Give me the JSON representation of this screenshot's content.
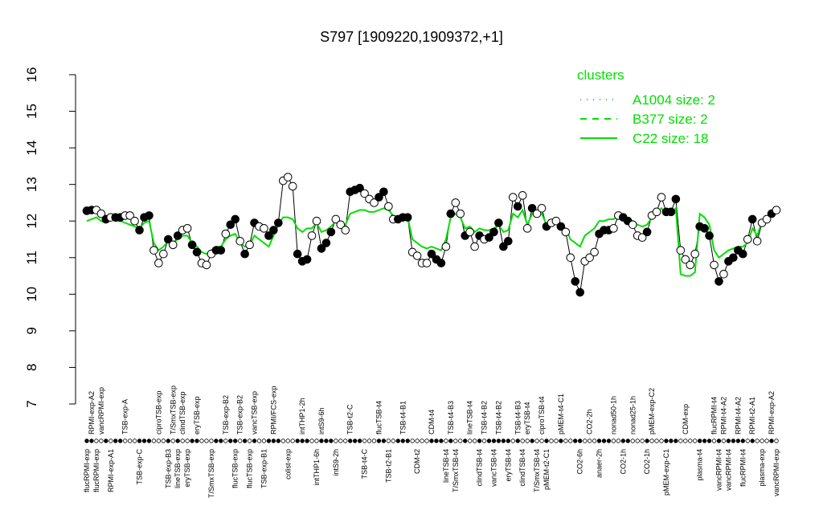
{
  "chart_data": {
    "type": "line",
    "title": "S797 [1909220,1909372,+1]",
    "ylim": [
      7,
      16
    ],
    "yticks": [
      7,
      8,
      9,
      10,
      11,
      12,
      13,
      14,
      15,
      16
    ],
    "categories": [
      "flucRPMI-exp",
      "RPMI-exp-A2",
      "flucRPMI-exp",
      "vancRPMI-exp",
      null,
      "RPMI-exp-A1",
      null,
      null,
      "TSB-exp-A",
      null,
      null,
      "TSB-exp-C",
      null,
      null,
      null,
      "ciproTSB-exp",
      null,
      "TSB-exp-B3",
      "T/SmxTSB-exp",
      "lineTSB-exp",
      "clindTSB-exp",
      "eryTSB-exp",
      null,
      "eryTSB-exp",
      null,
      null,
      "T/SmxTSB-exp",
      null,
      null,
      "TSB-exp-B2",
      null,
      "flucTSB-exp",
      "TSB-exp-B2",
      null,
      "flucTSB-exp",
      "vancTSB-exp",
      null,
      "TSB-exp-B1",
      null,
      "RPMI/FCS-exp",
      null,
      null,
      "colist-exp",
      null,
      null,
      "intTHP1-2h",
      null,
      null,
      "intTHP1-6h",
      "intS9-6h",
      null,
      null,
      "intS9-2h",
      null,
      null,
      "TSB-t2-C",
      null,
      null,
      "TSB-t4-C",
      null,
      null,
      "flucTSB-t4",
      null,
      "TSB-t2-B1",
      null,
      null,
      "TSB-t4-B1",
      null,
      null,
      "CDM-t2",
      null,
      null,
      "CDM-t4",
      null,
      null,
      "lineTSB-t4",
      "TSB-t4-B3",
      "T/SmxTSB-t4",
      null,
      null,
      "lineTSB-t4",
      null,
      "clindTSB-t4",
      "TSB-t4-B2",
      null,
      "vancTSB-t4",
      "TSB-t4-B2",
      null,
      "eryTSB-t4",
      null,
      "TSB-t4-B3",
      "clindTSB-t4",
      "eryTSB-t4",
      null,
      "T/SmxTSB-t4",
      "ciproTSB-t4",
      "pMEM-t2-C1",
      null,
      null,
      "pMEM-t4-C1",
      null,
      null,
      null,
      "CO2-6h",
      null,
      "CO2-2h",
      null,
      "anaer-2h",
      null,
      null,
      "nonad50-1h",
      null,
      "CO2-1h",
      null,
      "nonad25-1h",
      null,
      null,
      "CO2-1h",
      "pMEM-exp-C2",
      null,
      null,
      "pMEM-exp-C1",
      null,
      null,
      null,
      "CDM-exp",
      null,
      null,
      "plasma-t4",
      null,
      null,
      "flucRPMI-t4",
      "vancRPMI-t4",
      "RPMI-t4-A2",
      "vancRPMI-t4",
      null,
      "RPMI-t4-A2",
      "flucRPMI-t4",
      null,
      "RPMI-t2-A1",
      null,
      "plasma-exp",
      null,
      "RPMI-exp-A2",
      "vancRPMI-exp"
    ],
    "series": [
      {
        "color": "#000000",
        "values": [
          12.28,
          12.3,
          12.3,
          12.2,
          12.05,
          12.1,
          12.1,
          12.1,
          12.15,
          12.15,
          12.0,
          11.75,
          12.1,
          12.15,
          11.2,
          10.85,
          11.1,
          11.5,
          11.35,
          11.6,
          11.75,
          11.8,
          11.35,
          11.15,
          10.85,
          10.8,
          11.1,
          11.2,
          11.2,
          11.65,
          11.9,
          12.05,
          11.45,
          11.1,
          11.35,
          11.95,
          11.85,
          11.8,
          11.6,
          11.75,
          11.95,
          13.1,
          13.2,
          12.95,
          11.1,
          10.9,
          10.95,
          11.6,
          12.0,
          11.25,
          11.4,
          11.7,
          12.05,
          11.9,
          11.75,
          12.8,
          12.85,
          12.9,
          12.75,
          12.6,
          12.5,
          12.65,
          12.8,
          12.4,
          12.05,
          12.05,
          12.1,
          12.1,
          11.15,
          11.05,
          10.85,
          10.85,
          11.1,
          10.95,
          10.85,
          11.3,
          12.2,
          12.5,
          12.2,
          11.6,
          11.7,
          11.3,
          11.6,
          11.5,
          11.55,
          11.7,
          11.95,
          11.3,
          11.45,
          12.65,
          12.4,
          12.7,
          11.8,
          12.35,
          12.2,
          12.35,
          11.85,
          11.95,
          12.0,
          11.85,
          11.7,
          11.0,
          10.35,
          10.05,
          10.9,
          11.0,
          11.15,
          11.65,
          11.75,
          11.75,
          11.8,
          12.15,
          12.1,
          12.0,
          11.9,
          11.6,
          11.55,
          11.7,
          12.15,
          12.25,
          12.65,
          12.25,
          12.25,
          12.6,
          11.2,
          10.95,
          10.8,
          11.1,
          11.85,
          11.8,
          11.6,
          10.8,
          10.35,
          10.55,
          10.9,
          11.0,
          11.2,
          11.1,
          11.5,
          12.05,
          11.45,
          11.95,
          12.05,
          12.2,
          12.3
        ],
        "filled": [
          true,
          true,
          false,
          false,
          true,
          false,
          true,
          true,
          false,
          false,
          false,
          true,
          true,
          true,
          false,
          false,
          false,
          true,
          false,
          true,
          false,
          false,
          true,
          true,
          false,
          false,
          false,
          true,
          true,
          false,
          true,
          true,
          false,
          true,
          false,
          true,
          false,
          false,
          true,
          true,
          true,
          false,
          false,
          false,
          true,
          true,
          true,
          false,
          false,
          true,
          true,
          true,
          false,
          false,
          false,
          true,
          true,
          true,
          false,
          false,
          false,
          true,
          true,
          false,
          false,
          true,
          true,
          true,
          false,
          false,
          false,
          false,
          true,
          true,
          true,
          false,
          true,
          false,
          false,
          true,
          false,
          false,
          true,
          false,
          true,
          true,
          true,
          true,
          true,
          false,
          true,
          false,
          false,
          true,
          false,
          false,
          true,
          false,
          false,
          true,
          false,
          false,
          true,
          true,
          false,
          false,
          false,
          true,
          true,
          true,
          false,
          false,
          true,
          true,
          false,
          false,
          false,
          true,
          false,
          false,
          false,
          true,
          true,
          true,
          false,
          false,
          false,
          false,
          true,
          true,
          true,
          false,
          true,
          false,
          true,
          true,
          true,
          true,
          false,
          true,
          false,
          false,
          false,
          true,
          false
        ]
      },
      {
        "name": "C22 size: 18",
        "color": "#00e000",
        "dash": "solid",
        "values": [
          12.0,
          12.05,
          12.1,
          12.0,
          11.95,
          12.05,
          12.0,
          12.0,
          11.95,
          11.9,
          11.85,
          11.8,
          11.95,
          12.0,
          11.4,
          11.2,
          11.3,
          11.45,
          11.4,
          11.5,
          11.6,
          11.6,
          11.4,
          11.3,
          11.15,
          11.1,
          11.2,
          11.3,
          11.3,
          11.5,
          11.6,
          11.65,
          11.4,
          11.3,
          11.35,
          11.6,
          11.5,
          11.4,
          11.3,
          11.6,
          11.9,
          12.1,
          12.1,
          12.05,
          11.8,
          11.7,
          11.8,
          11.8,
          11.95,
          11.7,
          11.75,
          11.85,
          12.0,
          11.95,
          11.9,
          12.2,
          12.25,
          12.3,
          12.3,
          12.25,
          12.25,
          12.3,
          12.35,
          12.3,
          12.15,
          12.1,
          12.1,
          12.1,
          11.5,
          11.4,
          11.3,
          11.25,
          11.3,
          11.25,
          11.2,
          11.5,
          12.1,
          12.2,
          12.1,
          11.8,
          11.85,
          11.7,
          11.8,
          11.75,
          11.75,
          11.8,
          11.9,
          11.7,
          11.75,
          12.2,
          12.1,
          12.3,
          11.9,
          12.2,
          12.15,
          12.2,
          11.9,
          11.95,
          11.95,
          11.85,
          11.8,
          11.5,
          11.4,
          11.3,
          11.6,
          11.7,
          11.8,
          12.0,
          12.0,
          12.05,
          12.05,
          12.15,
          12.1,
          12.05,
          12.0,
          11.9,
          11.85,
          11.9,
          12.1,
          12.2,
          12.35,
          12.2,
          12.2,
          12.35,
          10.55,
          10.5,
          10.5,
          10.6,
          12.2,
          12.1,
          11.9,
          11.2,
          11.0,
          11.1,
          11.2,
          11.25,
          11.3,
          11.3,
          11.4,
          11.8,
          11.6,
          12.0,
          12.1,
          12.2,
          12.25
        ]
      }
    ],
    "legend": {
      "title": "clusters",
      "color": "#00e000",
      "entries": [
        {
          "label": "A1004 size: 2",
          "dash": "dotted"
        },
        {
          "label": "B377 size: 2",
          "dash": "dashed"
        },
        {
          "label": "C22 size: 18",
          "dash": "solid"
        }
      ]
    }
  }
}
